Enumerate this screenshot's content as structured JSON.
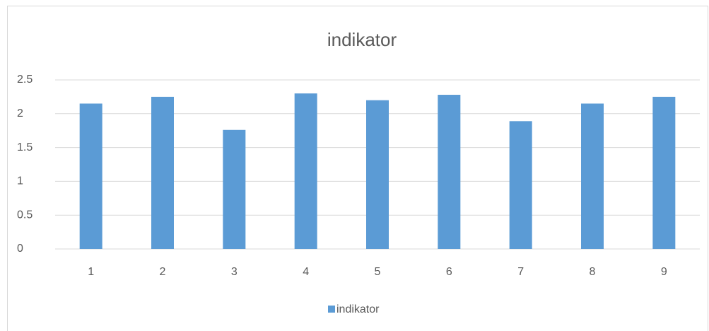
{
  "chart_data": {
    "type": "bar",
    "title": "indikator",
    "categories": [
      "1",
      "2",
      "3",
      "4",
      "5",
      "6",
      "7",
      "8",
      "9"
    ],
    "series": [
      {
        "name": "indikator",
        "color": "#5b9bd5",
        "values": [
          2.15,
          2.25,
          1.76,
          2.3,
          2.2,
          2.28,
          1.89,
          2.15,
          2.25
        ]
      }
    ],
    "ylim": [
      0,
      2.5
    ],
    "yticks": [
      0,
      0.5,
      1,
      1.5,
      2,
      2.5
    ],
    "grid": true,
    "legend": "bottom"
  }
}
